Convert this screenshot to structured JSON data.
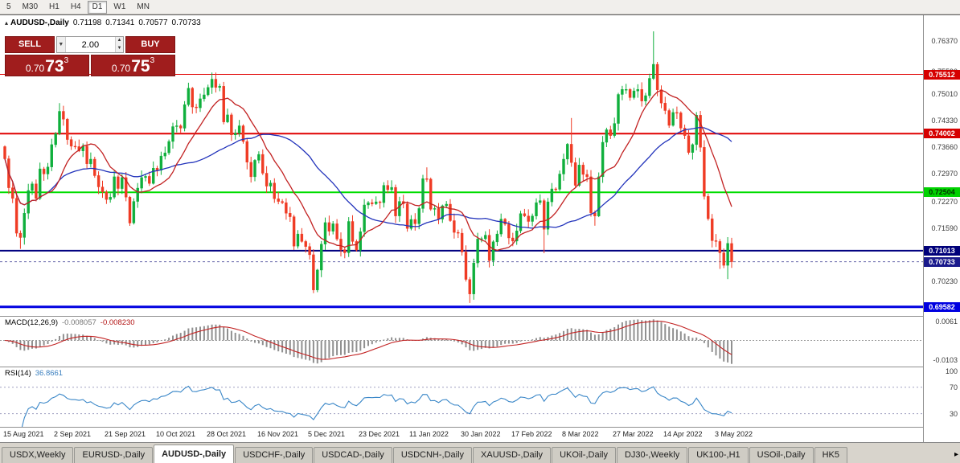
{
  "toolbar": {
    "timeframes": [
      {
        "label": "5",
        "active": false
      },
      {
        "label": "M30",
        "active": false
      },
      {
        "label": "H1",
        "active": false
      },
      {
        "label": "H4",
        "active": false
      },
      {
        "label": "D1",
        "active": true
      },
      {
        "label": "W1",
        "active": false
      },
      {
        "label": "MN",
        "active": false
      }
    ]
  },
  "header": {
    "collapse_icon": "▴",
    "symbol": "AUDUSD-,Daily",
    "open": "0.71198",
    "high": "0.71341",
    "low": "0.70577",
    "close": "0.70733"
  },
  "one_click": {
    "sell_label": "SELL",
    "buy_label": "BUY",
    "lot": "2.00",
    "caret_icon": "▼",
    "spin_up_icon": "▲",
    "spin_down_icon": "▼",
    "sell_price": {
      "big": "0.70",
      "pips": "73",
      "sup": "3"
    },
    "buy_price": {
      "big": "0.70",
      "pips": "75",
      "sup": "3"
    }
  },
  "price_axis": {
    "labels": [
      "0.76370",
      "0.75590",
      "0.75010",
      "0.74330",
      "0.73660",
      "0.72970",
      "0.72270",
      "0.71590",
      "0.70230"
    ],
    "tags": [
      {
        "text": "0.75512",
        "value": 0.75512,
        "bg": "#d60000",
        "fg": "#ffffff"
      },
      {
        "text": "0.74002",
        "value": 0.74002,
        "bg": "#d60000",
        "fg": "#ffffff"
      },
      {
        "text": "0.72504",
        "value": 0.72504,
        "bg": "#00d200",
        "fg": "#003300"
      },
      {
        "text": "0.71013",
        "value": 0.71013,
        "bg": "#00007a",
        "fg": "#ffffff"
      },
      {
        "text": "0.70733",
        "value": 0.70733,
        "bg": "#1a1a8c",
        "fg": "#ffffff",
        "current": true
      },
      {
        "text": "0.69582",
        "value": 0.69582,
        "bg": "#0000e0",
        "fg": "#ffffff"
      }
    ]
  },
  "chart_data": {
    "type": "candlestick",
    "title": "AUDUSD-,Daily",
    "price_range": [
      0.6935,
      0.7702
    ],
    "up_color": "#0faf3c",
    "down_color": "#ef3b24",
    "levels": [
      {
        "value": 0.75512,
        "color": "#e00000",
        "width": 1
      },
      {
        "value": 0.74002,
        "color": "#e00000",
        "width": 2
      },
      {
        "value": 0.72504,
        "color": "#00dd00",
        "width": 2
      },
      {
        "value": 0.71013,
        "color": "#000080",
        "width": 2
      },
      {
        "value": 0.69582,
        "color": "#0000e0",
        "width": 3
      }
    ],
    "current_price": 0.70733,
    "ma_fast": {
      "period": 12,
      "color": "#c22222"
    },
    "ma_slow": {
      "period": 33,
      "color": "#2233bb"
    },
    "x_labels": [
      "15 Aug 2021",
      "2 Sep 2021",
      "21 Sep 2021",
      "10 Oct 2021",
      "28 Oct 2021",
      "16 Nov 2021",
      "5 Dec 2021",
      "23 Dec 2021",
      "11 Jan 2022",
      "30 Jan 2022",
      "17 Feb 2022",
      "8 Mar 2022",
      "27 Mar 2022",
      "14 Apr 2022",
      "3 May 2022"
    ],
    "candles_per_label": 13,
    "closes": [
      0.7336,
      0.7262,
      0.7235,
      0.7146,
      0.7135,
      0.7197,
      0.7255,
      0.7272,
      0.7235,
      0.731,
      0.7297,
      0.7315,
      0.7372,
      0.74,
      0.7457,
      0.7437,
      0.7385,
      0.7368,
      0.7367,
      0.7356,
      0.7368,
      0.7323,
      0.7335,
      0.7293,
      0.7264,
      0.7251,
      0.7232,
      0.7238,
      0.729,
      0.726,
      0.7288,
      0.7238,
      0.7172,
      0.7227,
      0.7261,
      0.7288,
      0.7291,
      0.7273,
      0.7312,
      0.7307,
      0.7343,
      0.7351,
      0.738,
      0.7418,
      0.742,
      0.7414,
      0.7474,
      0.7516,
      0.7468,
      0.7466,
      0.7489,
      0.7499,
      0.7518,
      0.7539,
      0.7518,
      0.7521,
      0.743,
      0.7448,
      0.7397,
      0.7401,
      0.742,
      0.738,
      0.7327,
      0.729,
      0.7332,
      0.7347,
      0.7299,
      0.7266,
      0.7274,
      0.7234,
      0.7227,
      0.7224,
      0.7197,
      0.7188,
      0.7113,
      0.7144,
      0.7125,
      0.7112,
      0.7091,
      0.7001,
      0.7052,
      0.7118,
      0.7173,
      0.7151,
      0.717,
      0.7131,
      0.7104,
      0.7096,
      0.7176,
      0.7125,
      0.7103,
      0.715,
      0.7218,
      0.7224,
      0.7221,
      0.7226,
      0.7224,
      0.7268,
      0.7257,
      0.7263,
      0.719,
      0.7227,
      0.7221,
      0.7158,
      0.7181,
      0.717,
      0.7209,
      0.7285,
      0.7284,
      0.7207,
      0.7209,
      0.7182,
      0.7216,
      0.722,
      0.7178,
      0.7148,
      0.7146,
      0.7098,
      0.7028,
      0.6991,
      0.707,
      0.7131,
      0.7132,
      0.7141,
      0.7076,
      0.7124,
      0.7144,
      0.7182,
      0.7169,
      0.7134,
      0.7126,
      0.7152,
      0.7196,
      0.719,
      0.7176,
      0.719,
      0.7224,
      0.7229,
      0.7156,
      0.7226,
      0.7259,
      0.7258,
      0.7297,
      0.7335,
      0.7373,
      0.7326,
      0.7268,
      0.732,
      0.7296,
      0.729,
      0.7198,
      0.719,
      0.729,
      0.7378,
      0.741,
      0.7395,
      0.7426,
      0.75,
      0.7513,
      0.7513,
      0.7492,
      0.7509,
      0.7513,
      0.7483,
      0.7497,
      0.7541,
      0.7577,
      0.7512,
      0.7478,
      0.7459,
      0.7421,
      0.7454,
      0.7453,
      0.7414,
      0.7395,
      0.7352,
      0.7372,
      0.7447,
      0.7365,
      0.724,
      0.7183,
      0.7127,
      0.7125,
      0.7096,
      0.7064,
      0.712,
      0.70733
    ],
    "overrides": {
      "4": {
        "l": 0.7106
      },
      "14": {
        "h": 0.7478
      },
      "53": {
        "h": 0.7556
      },
      "79": {
        "l": 0.6993
      },
      "108": {
        "h": 0.7314
      },
      "119": {
        "l": 0.6968
      },
      "138": {
        "l": 0.7095
      },
      "145": {
        "h": 0.744
      },
      "151": {
        "l": 0.7165
      },
      "166": {
        "h": 0.7661
      },
      "178": {
        "h": 0.7458
      },
      "183": {
        "l": 0.7055
      },
      "185": {
        "l": 0.7029
      },
      "186": {
        "o": 0.71198,
        "h": 0.71341,
        "l": 0.70577,
        "c": 0.70733
      }
    },
    "macd": {
      "name": "MACD(12,26,9)",
      "value_main": "-0.008057",
      "value_signal": "-0.008230",
      "fast": 12,
      "slow": 26,
      "signal": 9,
      "hist_color": "#909090",
      "line_color": "#c22222",
      "axis_top": "0.0061",
      "axis_bottom": "-0.0103"
    },
    "rsi": {
      "name": "RSI(14)",
      "value": "36.8661",
      "period": 14,
      "color": "#3a87c8",
      "levels": [
        70,
        30
      ],
      "axis_labels": [
        "100",
        "70",
        "30"
      ]
    }
  },
  "tabs": [
    {
      "label": "USDX,Weekly",
      "active": false
    },
    {
      "label": "EURUSD-,Daily",
      "active": false
    },
    {
      "label": "AUDUSD-,Daily",
      "active": true
    },
    {
      "label": "USDCHF-,Daily",
      "active": false
    },
    {
      "label": "USDCAD-,Daily",
      "active": false
    },
    {
      "label": "USDCNH-,Daily",
      "active": false
    },
    {
      "label": "XAUUSD-,Daily",
      "active": false
    },
    {
      "label": "UKOil-,Daily",
      "active": false
    },
    {
      "label": "DJ30-,Weekly",
      "active": false
    },
    {
      "label": "UK100-,H1",
      "active": false
    },
    {
      "label": "USOil-,Daily",
      "active": false
    },
    {
      "label": "HK5",
      "active": false
    }
  ],
  "tab_scroll_icon": "▸"
}
